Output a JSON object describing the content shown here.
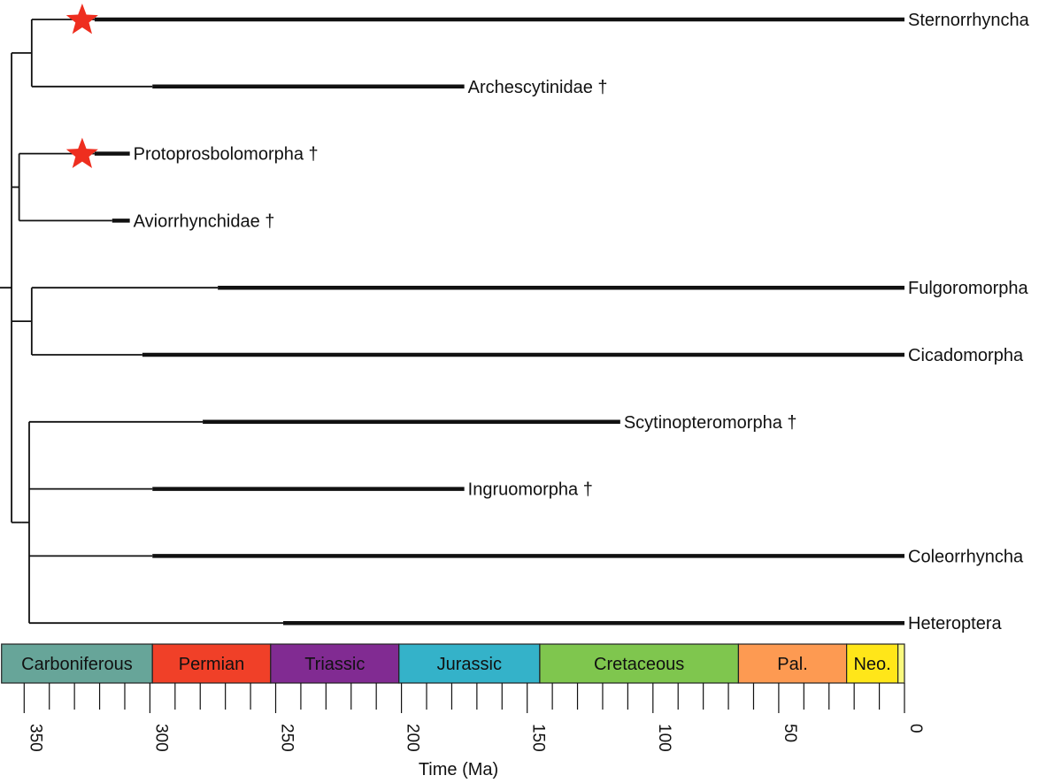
{
  "chart_data": {
    "type": "phylogenetic-tree",
    "xlabel": "Time (Ma)",
    "x_range_ma": [
      365,
      0
    ],
    "ticks": [
      350,
      300,
      250,
      200,
      150,
      100,
      50,
      0
    ],
    "minor_tick_step_ma": 10,
    "periods": [
      {
        "name": "Carboniferous",
        "start_ma": 359,
        "end_ma": 299,
        "color": "#67A599"
      },
      {
        "name": "Permian",
        "start_ma": 299,
        "end_ma": 252,
        "color": "#F04028"
      },
      {
        "name": "Triassic",
        "start_ma": 252,
        "end_ma": 201,
        "color": "#812B92"
      },
      {
        "name": "Jurassic",
        "start_ma": 201,
        "end_ma": 145,
        "color": "#34B2C9"
      },
      {
        "name": "Cretaceous",
        "start_ma": 145,
        "end_ma": 66,
        "color": "#7FC64E"
      },
      {
        "name": "Pal.",
        "start_ma": 66,
        "end_ma": 23,
        "color": "#FD9A52"
      },
      {
        "name": "Neo.",
        "start_ma": 23,
        "end_ma": 2.6,
        "color": "#FFE619"
      },
      {
        "name": "",
        "start_ma": 2.6,
        "end_ma": 0,
        "color": "#F9F97F"
      }
    ],
    "taxa": [
      {
        "name": "Sternorrhyncha",
        "extinct": false,
        "range_ma": [
          322,
          0
        ],
        "star": true
      },
      {
        "name": "Archescytinidae †",
        "extinct": true,
        "range_ma": [
          299,
          175
        ],
        "star": false
      },
      {
        "name": "Protoprosbolomorpha †",
        "extinct": true,
        "range_ma": [
          322,
          308
        ],
        "star": true
      },
      {
        "name": "Aviorrhynchidae †",
        "extinct": true,
        "range_ma": [
          315,
          308
        ],
        "star": false
      },
      {
        "name": "Fulgoromorpha",
        "extinct": false,
        "range_ma": [
          273,
          0
        ],
        "star": false
      },
      {
        "name": "Cicadomorpha",
        "extinct": false,
        "range_ma": [
          303,
          0
        ],
        "star": false
      },
      {
        "name": "Scytinopteromorpha †",
        "extinct": true,
        "range_ma": [
          279,
          113
        ],
        "star": false
      },
      {
        "name": "Ingruomorpha †",
        "extinct": true,
        "range_ma": [
          299,
          175
        ],
        "star": false
      },
      {
        "name": "Coleorrhyncha",
        "extinct": false,
        "range_ma": [
          299,
          0
        ],
        "star": false
      },
      {
        "name": "Heteroptera",
        "extinct": false,
        "range_ma": [
          247,
          0
        ],
        "star": false
      }
    ],
    "tree": {
      "root_ma": 362,
      "clades": [
        {
          "node_ma": 355,
          "children": [
            {
              "node_ma": 347,
              "children": [
                0,
                1
              ]
            },
            {
              "node_ma": 352,
              "children": [
                2,
                3
              ]
            },
            {
              "node_ma": 347,
              "children": [
                4,
                5
              ]
            },
            {
              "node_ma": 351,
              "children": [
                {
                  "node_ma": 348,
                  "children": [
                    6,
                    7,
                    8,
                    9
                  ]
                }
              ]
            }
          ]
        }
      ]
    }
  }
}
